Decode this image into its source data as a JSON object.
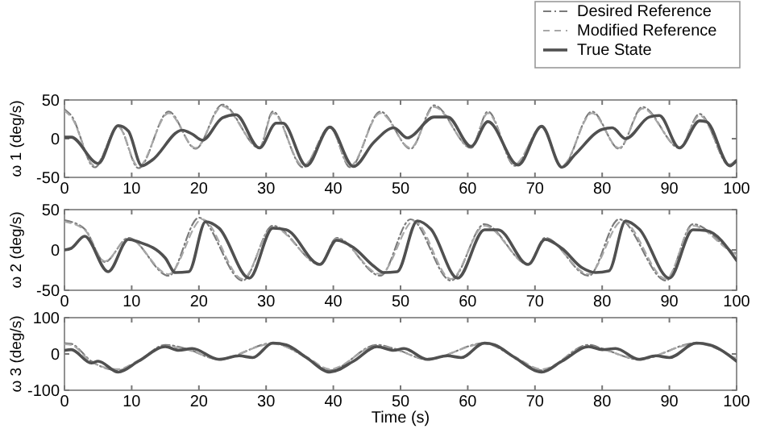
{
  "chart_data": [
    {
      "type": "line",
      "ylabel": "ω 1 (deg/s)",
      "xlim": [
        0,
        100
      ],
      "xticks": [
        0,
        10,
        20,
        30,
        40,
        50,
        60,
        70,
        80,
        90,
        100
      ],
      "ylim": [
        -50,
        50
      ],
      "yticks": [
        -50,
        0,
        50
      ],
      "legend": "top right",
      "grid": false,
      "series": [
        {
          "name": "Desired Reference",
          "color": "#7a7a7a",
          "line_style": "dotted",
          "x": [
            0,
            1,
            4.5,
            8,
            11,
            15.5,
            19.5,
            23.5,
            29,
            31,
            35.5,
            39.5,
            42.5,
            47,
            51.5,
            55,
            60.5,
            63,
            67,
            71,
            74,
            78.5,
            82.5,
            86,
            91.5,
            94.5,
            99,
            100
          ],
          "values": [
            38,
            30,
            -37,
            16,
            -38,
            35,
            -13,
            44,
            -12,
            35,
            -37,
            15,
            -37,
            35,
            -13,
            43,
            -12,
            35,
            -35,
            15,
            -37,
            35,
            -13,
            41,
            -12,
            32,
            -35,
            -28
          ]
        },
        {
          "name": "Modified Reference",
          "color": "#a8a8a8",
          "line_style": "dashed",
          "x": [
            0,
            1,
            4.5,
            8,
            11,
            15.5,
            19.5,
            23.5,
            29,
            31,
            35.5,
            39.5,
            42.5,
            47,
            51.5,
            55,
            60.5,
            63,
            67,
            71,
            74,
            78.5,
            82.5,
            86,
            91.5,
            94.5,
            99,
            100
          ],
          "values": [
            36,
            28,
            -35,
            15,
            -36,
            33,
            -12,
            42,
            -11,
            33,
            -35,
            14,
            -35,
            33,
            -12,
            41,
            -11,
            33,
            -33,
            14,
            -35,
            33,
            -12,
            39,
            -11,
            30,
            -33,
            -26
          ]
        },
        {
          "name": "True State",
          "color": "#505050",
          "line_style": "solid",
          "x": [
            0,
            1,
            5,
            8,
            9.5,
            11.5,
            13,
            17.5,
            19,
            20.5,
            23.5,
            25.5,
            29,
            31.5,
            32.5,
            36,
            39.5,
            43,
            46,
            49,
            51,
            55,
            57,
            60.5,
            63,
            67.5,
            71,
            74,
            76,
            80,
            81.5,
            83.5,
            87,
            88.5,
            91.5,
            94.5,
            95.5,
            99,
            100
          ],
          "values": [
            2,
            2,
            -32,
            17,
            10,
            -35,
            -28,
            11,
            6,
            -2,
            27,
            31,
            -12,
            20,
            20,
            -35,
            15,
            -36,
            -5,
            14,
            1,
            28,
            28,
            -10,
            22,
            -34,
            16,
            -37,
            -20,
            12,
            14,
            0,
            28,
            30,
            -12,
            23,
            22,
            -35,
            -28
          ]
        }
      ]
    },
    {
      "type": "line",
      "ylabel": "ω 2 (deg/s)",
      "xlim": [
        0,
        100
      ],
      "xticks": [
        0,
        10,
        20,
        30,
        40,
        50,
        60,
        70,
        80,
        90,
        100
      ],
      "ylim": [
        -50,
        50
      ],
      "yticks": [
        -50,
        0,
        50
      ],
      "grid": false,
      "series": [
        {
          "color": "#7a7a7a",
          "line_style": "dotted",
          "x": [
            0,
            3,
            6,
            9.5,
            15.5,
            20,
            26.5,
            31,
            38,
            40.5,
            47,
            51.5,
            57.5,
            62.5,
            69,
            71.5,
            78,
            82.5,
            89.5,
            93.5,
            99,
            100
          ],
          "values": [
            37,
            26,
            -15,
            15,
            -32,
            40,
            -38,
            30,
            -18,
            15,
            -32,
            38,
            -38,
            32,
            -18,
            15,
            -32,
            38,
            -38,
            32,
            0,
            -5
          ]
        },
        {
          "color": "#a8a8a8",
          "line_style": "dashed",
          "x": [
            0,
            3,
            6,
            9.5,
            15.5,
            20.5,
            26.5,
            31,
            38,
            40.5,
            47,
            52,
            57.5,
            62.5,
            69,
            71.5,
            78,
            83,
            89.5,
            93.5,
            99,
            100
          ],
          "values": [
            35,
            25,
            -14,
            14,
            -30,
            38,
            -36,
            28,
            -17,
            14,
            -30,
            36,
            -36,
            30,
            -17,
            14,
            -30,
            36,
            -36,
            30,
            -1,
            -6
          ]
        },
        {
          "color": "#505050",
          "line_style": "solid",
          "x": [
            0,
            1,
            3,
            6.5,
            9.5,
            11,
            15,
            16.5,
            18.5,
            21,
            23,
            27.5,
            31,
            33,
            38,
            40.5,
            43,
            46,
            47.5,
            49.5,
            52.5,
            54.5,
            58.5,
            62.5,
            64.5,
            69,
            71.5,
            74,
            77,
            79,
            81,
            83.5,
            85.5,
            90,
            93.5,
            95.5,
            100
          ],
          "values": [
            0,
            2,
            17,
            -27,
            13,
            10,
            -10,
            -28,
            -27,
            35,
            27,
            -35,
            27,
            25,
            -18,
            12,
            3,
            -20,
            -28,
            -27,
            36,
            26,
            -35,
            25,
            25,
            -18,
            13,
            2,
            -22,
            -28,
            -26,
            36,
            26,
            -35,
            25,
            24,
            -13
          ]
        }
      ]
    },
    {
      "type": "line",
      "ylabel": "ω 3 (deg/s)",
      "xlabel": "Time (s)",
      "xlim": [
        0,
        100
      ],
      "xticks": [
        0,
        10,
        20,
        30,
        40,
        50,
        60,
        70,
        80,
        90,
        100
      ],
      "ylim": [
        -100,
        100
      ],
      "yticks": [
        -100,
        0,
        100
      ],
      "grid": false,
      "series": [
        {
          "color": "#7a7a7a",
          "line_style": "dotted",
          "x": [
            0,
            1,
            4,
            8,
            11,
            15,
            18,
            23,
            31,
            36,
            39.5,
            46.5,
            49,
            54,
            62.5,
            67,
            71,
            78,
            80,
            85.5,
            94,
            100
          ],
          "values": [
            30,
            28,
            -20,
            -45,
            -20,
            25,
            15,
            -15,
            30,
            -10,
            -45,
            25,
            15,
            -15,
            30,
            -10,
            -45,
            25,
            15,
            -15,
            30,
            -15
          ]
        },
        {
          "color": "#a8a8a8",
          "line_style": "dashed",
          "x": [
            0,
            1,
            4,
            8,
            11,
            15,
            18,
            23,
            31,
            36,
            39.5,
            46.5,
            49,
            54,
            62.5,
            67,
            71,
            78,
            80,
            85.5,
            94,
            100
          ],
          "values": [
            27,
            25,
            -22,
            -42,
            -18,
            22,
            13,
            -13,
            28,
            -8,
            -42,
            22,
            13,
            -13,
            28,
            -8,
            -42,
            22,
            13,
            -13,
            28,
            -13
          ]
        },
        {
          "color": "#505050",
          "line_style": "solid",
          "x": [
            0,
            1,
            4,
            5,
            8,
            11,
            15,
            17,
            19,
            23,
            26,
            28,
            31,
            33,
            36,
            39.5,
            43,
            46.5,
            49,
            50.5,
            54,
            57,
            59,
            62.5,
            64,
            67,
            71,
            74,
            78,
            80,
            82,
            85.5,
            88,
            90,
            94,
            96,
            100
          ],
          "values": [
            10,
            12,
            -25,
            -20,
            -50,
            -20,
            20,
            10,
            15,
            -15,
            -5,
            -10,
            30,
            25,
            -10,
            -50,
            -20,
            20,
            10,
            15,
            -15,
            -5,
            -10,
            30,
            25,
            -10,
            -50,
            -20,
            20,
            12,
            15,
            -15,
            -5,
            -10,
            30,
            25,
            -20
          ]
        }
      ]
    }
  ]
}
